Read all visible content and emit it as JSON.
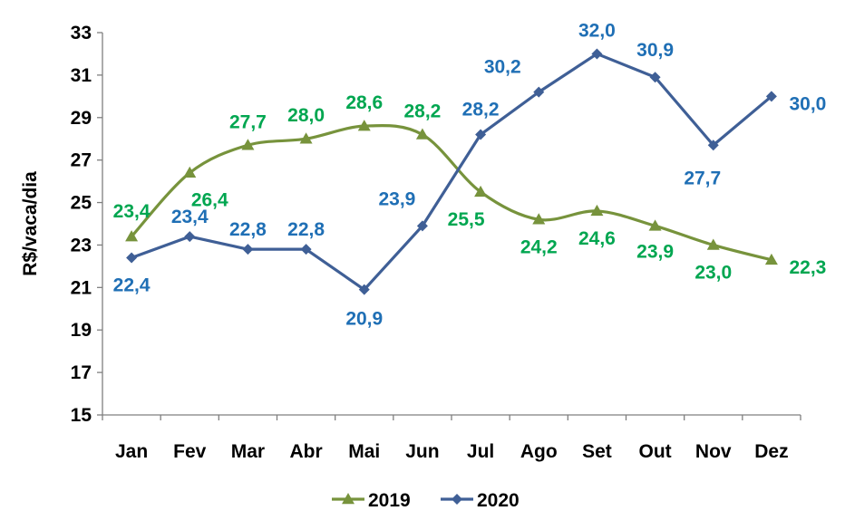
{
  "chart_data": {
    "type": "line",
    "ylabel": "R$/vaca/dia",
    "xlabel": "",
    "ylim": [
      15,
      33
    ],
    "yticks": [
      "15",
      "17",
      "19",
      "21",
      "23",
      "25",
      "27",
      "29",
      "31",
      "33"
    ],
    "categories": [
      "Jan",
      "Fev",
      "Mar",
      "Abr",
      "Mai",
      "Jun",
      "Jul",
      "Ago",
      "Set",
      "Out",
      "Nov",
      "Dez"
    ],
    "grid": false,
    "legend": "bottom",
    "series": [
      {
        "name": "2019",
        "color": "#77933C",
        "label_color": "#00A650",
        "marker": "triangle",
        "smooth": true,
        "values": [
          23.4,
          26.4,
          27.7,
          28.0,
          28.6,
          28.2,
          25.5,
          24.2,
          24.6,
          23.9,
          23.0,
          22.3
        ],
        "labels": [
          "23,4",
          "26,4",
          "27,7",
          "28,0",
          "28,6",
          "28,2",
          "25,5",
          "24,2",
          "24,6",
          "23,9",
          "23,0",
          "22,3"
        ]
      },
      {
        "name": "2020",
        "color": "#3F5F96",
        "label_color": "#1F6FB5",
        "marker": "diamond",
        "smooth": false,
        "values": [
          22.4,
          23.4,
          22.8,
          22.8,
          20.9,
          23.9,
          28.2,
          30.2,
          32.0,
          30.9,
          27.7,
          30.0
        ],
        "labels": [
          "22,4",
          "23,4",
          "22,8",
          "22,8",
          "20,9",
          "23,9",
          "28,2",
          "30,2",
          "32,0",
          "30,9",
          "27,7",
          "30,0"
        ]
      }
    ]
  }
}
